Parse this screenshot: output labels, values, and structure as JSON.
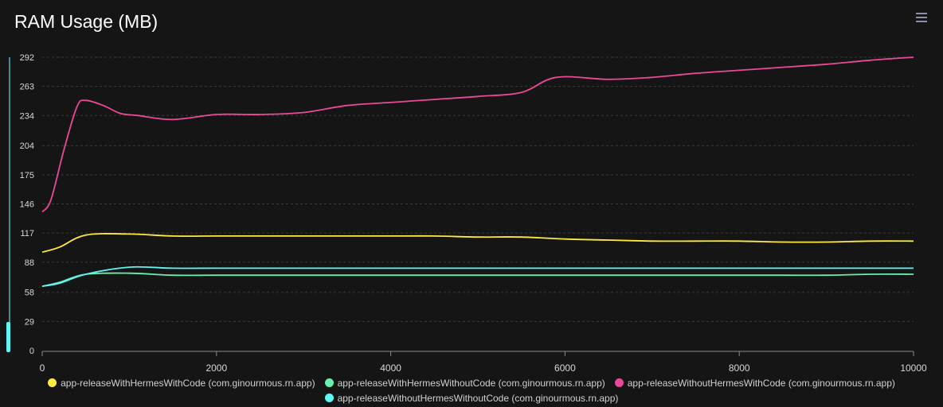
{
  "chart_data": {
    "type": "line",
    "title": "RAM Usage (MB)",
    "xlabel": "",
    "ylabel": "",
    "xlim": [
      0,
      10000
    ],
    "ylim": [
      0,
      292
    ],
    "x_ticks": [
      "0",
      "2000",
      "4000",
      "6000",
      "8000",
      "10000"
    ],
    "y_ticks": [
      "0",
      "29",
      "58",
      "88",
      "117",
      "146",
      "175",
      "204",
      "234",
      "263",
      "292"
    ],
    "grid": "horizontal dashed",
    "legend_position": "bottom",
    "series": [
      {
        "name": "app-releaseWithHermesWithCode (com.ginourmous.rn.app)",
        "color": "#ffeb3b",
        "x": [
          0,
          200,
          500,
          1000,
          1500,
          2000,
          2500,
          3000,
          3500,
          4000,
          4500,
          5000,
          5500,
          6000,
          6500,
          7000,
          7500,
          8000,
          8500,
          9000,
          9500,
          10000
        ],
        "y": [
          98,
          103,
          115,
          116,
          114,
          114,
          114,
          114,
          114,
          114,
          114,
          113,
          113,
          111,
          110,
          109,
          109,
          109,
          108,
          108,
          109,
          109
        ]
      },
      {
        "name": "app-releaseWithHermesWithoutCode (com.ginourmous.rn.app)",
        "color": "#69f0ae",
        "x": [
          0,
          200,
          500,
          1000,
          1500,
          2000,
          2500,
          3000,
          3500,
          4000,
          4500,
          5000,
          5500,
          6000,
          6500,
          7000,
          7500,
          8000,
          8500,
          9000,
          9500,
          10000
        ],
        "y": [
          64,
          68,
          76,
          77,
          75,
          75,
          75,
          75,
          75,
          75,
          75,
          75,
          75,
          75,
          75,
          75,
          75,
          75,
          75,
          75,
          76,
          76
        ]
      },
      {
        "name": "app-releaseWithoutHermesWithCode (com.ginourmous.rn.app)",
        "color": "#ec4899",
        "x": [
          0,
          100,
          250,
          400,
          500,
          700,
          900,
          1100,
          1500,
          2000,
          2500,
          3000,
          3500,
          4000,
          4500,
          5000,
          5500,
          5900,
          6500,
          7000,
          7500,
          8000,
          8500,
          9000,
          9500,
          10000
        ],
        "y": [
          138,
          150,
          200,
          243,
          249,
          244,
          236,
          234,
          230,
          235,
          235,
          237,
          244,
          247,
          250,
          253,
          257,
          272,
          270,
          272,
          276,
          279,
          282,
          285,
          289,
          292
        ]
      },
      {
        "name": "app-releaseWithoutHermesWithoutCode (com.ginourmous.rn.app)",
        "color": "#5ff5f5",
        "x": [
          0,
          200,
          500,
          1000,
          1500,
          2000,
          2500,
          3000,
          3500,
          4000,
          4500,
          5000,
          5500,
          6000,
          6500,
          7000,
          7500,
          8000,
          8500,
          9000,
          9500,
          10000
        ],
        "y": [
          64,
          67,
          76,
          83,
          82,
          82,
          82,
          82,
          82,
          82,
          82,
          82,
          82,
          82,
          82,
          82,
          82,
          82,
          82,
          82,
          82,
          82
        ]
      }
    ]
  },
  "toolbar": {
    "menu_icon": "hamburger-menu-icon"
  }
}
